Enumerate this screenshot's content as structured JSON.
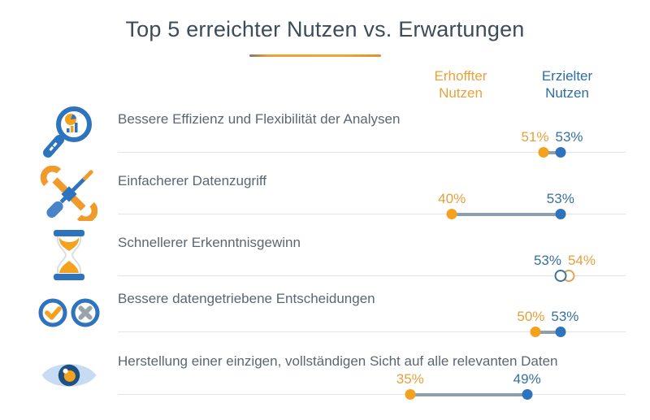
{
  "title": "Top 5 erreichter Nutzen vs. Erwartungen",
  "column_headers": {
    "hoped": "Erhoffter Nutzen",
    "achieved": "Erzielter Nutzen"
  },
  "colors": {
    "orange_accent": "#E9A13B",
    "orange_dot": "#F4A11D",
    "blue_text": "#2E6DA4",
    "blue_dot": "#2E73BE",
    "title_text": "#3D4C5A",
    "label_text": "#5A6772",
    "connector": "#8D9EAF",
    "track": "#E4E4E6"
  },
  "chart_data": {
    "type": "scatter",
    "subtype": "dumbbell",
    "title": "Top 5 erreichter Nutzen vs. Erwartungen",
    "unit": "%",
    "legend": [
      "Erhoffter Nutzen",
      "Erzielter Nutzen"
    ],
    "legend_position": "top-right",
    "grid": false,
    "x_axis_visible": false,
    "categories": [
      "Bessere Effizienz und Flexibilität der Analysen",
      "Einfacherer Datenzugriff",
      "Schnellerer Erkenntnisgewinn",
      "Bessere datengetriebene Entscheidungen",
      "Herstellung einer einzigen, vollständigen Sicht auf alle relevanten Daten"
    ],
    "series": [
      {
        "name": "Erhoffter Nutzen",
        "color": "#F4A11D",
        "values": [
          51,
          40,
          54,
          50,
          35
        ]
      },
      {
        "name": "Erzielter Nutzen",
        "color": "#2E73BE",
        "values": [
          53,
          53,
          53,
          53,
          49
        ]
      }
    ],
    "rows": [
      {
        "label": "Bessere Effizienz und Flexibilität der Analysen",
        "icon": "magnifier-chart-icon",
        "hoped": 51,
        "achieved": 53,
        "hoped_label": "51%",
        "achieved_label": "53%",
        "marker": "filled"
      },
      {
        "label": "Einfacherer Datenzugriff",
        "icon": "tools-icon",
        "hoped": 40,
        "achieved": 53,
        "hoped_label": "40%",
        "achieved_label": "53%",
        "marker": "filled"
      },
      {
        "label": "Schnellerer Erkenntnisgewinn",
        "icon": "hourglass-icon",
        "hoped": 54,
        "achieved": 53,
        "hoped_label": "54%",
        "achieved_label": "53%",
        "marker": "open"
      },
      {
        "label": "Bessere datengetriebene Entscheidungen",
        "icon": "check-x-icon",
        "hoped": 50,
        "achieved": 53,
        "hoped_label": "50%",
        "achieved_label": "53%",
        "marker": "filled"
      },
      {
        "label": "Herstellung einer einzigen, vollständigen Sicht auf alle relevanten Daten",
        "icon": "eye-icon",
        "hoped": 35,
        "achieved": 49,
        "hoped_label": "35%",
        "achieved_label": "49%",
        "marker": "filled"
      }
    ]
  }
}
